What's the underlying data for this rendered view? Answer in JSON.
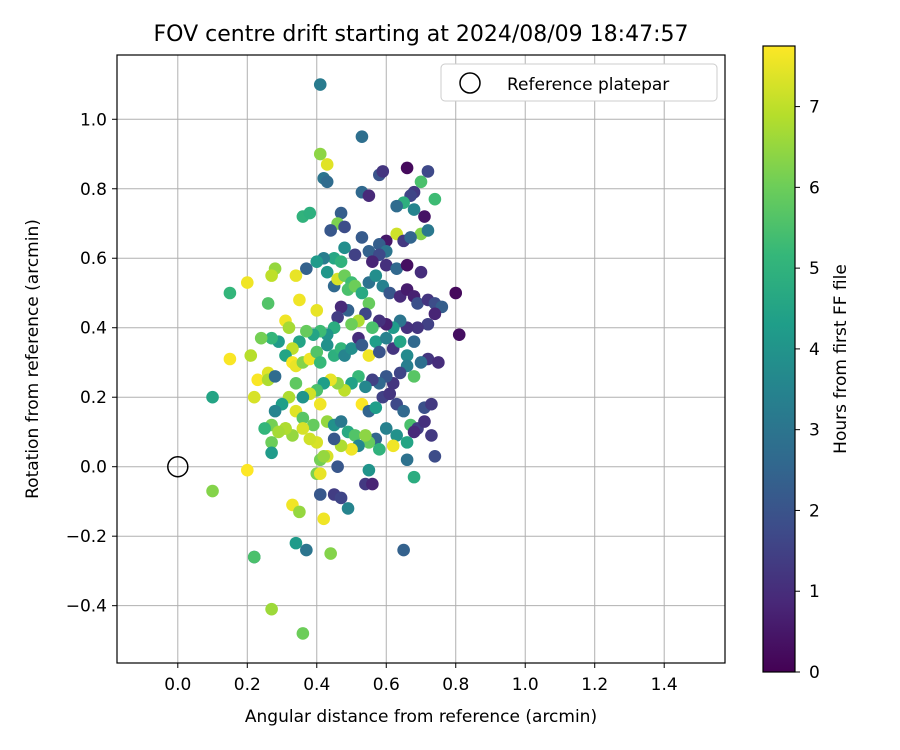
{
  "chart_data": {
    "type": "scatter",
    "title": "FOV centre drift starting at 2024/08/09 18:47:57",
    "xlabel": "Angular distance from reference (arcmin)",
    "ylabel": "Rotation from reference (arcmin)",
    "xlim": [
      -0.175,
      1.575
    ],
    "ylim": [
      -0.565,
      1.185
    ],
    "x_ticks": [
      0.0,
      0.2,
      0.4,
      0.6,
      0.8,
      1.0,
      1.2,
      1.4
    ],
    "x_tick_labels": [
      "0.0",
      "0.2",
      "0.4",
      "0.6",
      "0.8",
      "1.0",
      "1.2",
      "1.4"
    ],
    "y_ticks": [
      -0.4,
      -0.2,
      0.0,
      0.2,
      0.4,
      0.6,
      0.8,
      1.0
    ],
    "y_tick_labels": [
      "−0.4",
      "−0.2",
      "0.0",
      "0.2",
      "0.4",
      "0.6",
      "0.8",
      "1.0"
    ],
    "grid": true,
    "legend": {
      "placement": "top-right",
      "entries": [
        "Reference platepar"
      ]
    },
    "reference_point": {
      "x": 0.0,
      "y": 0.0,
      "label": "Reference platepar"
    },
    "colorbar": {
      "label": "Hours from first FF file",
      "range": [
        0,
        7.75
      ],
      "ticks": [
        0,
        1,
        2,
        3,
        4,
        5,
        6,
        7
      ],
      "tick_labels": [
        "0",
        "1",
        "2",
        "3",
        "4",
        "5",
        "6",
        "7"
      ],
      "colormap": "viridis"
    },
    "colormap_stops": [
      "#440154",
      "#482878",
      "#3e4a89",
      "#31688e",
      "#26828e",
      "#1f9e89",
      "#35b779",
      "#6ece58",
      "#b5de2b",
      "#fde725"
    ],
    "points": [
      [
        0.41,
        1.1,
        3.2
      ],
      [
        0.53,
        0.95,
        2.8
      ],
      [
        0.41,
        0.9,
        6.4
      ],
      [
        0.43,
        0.87,
        7.4
      ],
      [
        0.66,
        0.86,
        0.2
      ],
      [
        0.53,
        0.79,
        2.6
      ],
      [
        0.42,
        0.83,
        3.0
      ],
      [
        0.43,
        0.82,
        2.7
      ],
      [
        0.72,
        0.85,
        1.7
      ],
      [
        0.58,
        0.84,
        2.0
      ],
      [
        0.59,
        0.85,
        1.2
      ],
      [
        0.68,
        0.79,
        1.3
      ],
      [
        0.67,
        0.78,
        1.6
      ],
      [
        0.7,
        0.82,
        5.5
      ],
      [
        0.74,
        0.77,
        5.3
      ],
      [
        0.65,
        0.76,
        4.9
      ],
      [
        0.63,
        0.75,
        2.7
      ],
      [
        0.55,
        0.78,
        0.9
      ],
      [
        0.68,
        0.74,
        3.5
      ],
      [
        0.71,
        0.72,
        0.4
      ],
      [
        0.7,
        0.67,
        6.3
      ],
      [
        0.72,
        0.68,
        3.1
      ],
      [
        0.36,
        0.72,
        5.0
      ],
      [
        0.38,
        0.73,
        4.9
      ],
      [
        0.47,
        0.73,
        2.3
      ],
      [
        0.46,
        0.7,
        6.2
      ],
      [
        0.48,
        0.69,
        1.8
      ],
      [
        0.44,
        0.68,
        2.1
      ],
      [
        0.53,
        0.66,
        2.2
      ],
      [
        0.6,
        0.65,
        0.5
      ],
      [
        0.63,
        0.67,
        7.2
      ],
      [
        0.65,
        0.65,
        1.3
      ],
      [
        0.67,
        0.66,
        2.5
      ],
      [
        0.58,
        0.64,
        2.3
      ],
      [
        0.6,
        0.62,
        3.0
      ],
      [
        0.55,
        0.62,
        2.4
      ],
      [
        0.58,
        0.61,
        1.7
      ],
      [
        0.48,
        0.63,
        3.8
      ],
      [
        0.45,
        0.6,
        4.6
      ],
      [
        0.42,
        0.6,
        3.3
      ],
      [
        0.4,
        0.59,
        4.2
      ],
      [
        0.47,
        0.59,
        5.0
      ],
      [
        0.51,
        0.61,
        1.5
      ],
      [
        0.56,
        0.59,
        0.8
      ],
      [
        0.6,
        0.58,
        1.1
      ],
      [
        0.63,
        0.57,
        2.6
      ],
      [
        0.66,
        0.58,
        0.3
      ],
      [
        0.7,
        0.56,
        1.0
      ],
      [
        0.37,
        0.57,
        2.4
      ],
      [
        0.28,
        0.57,
        6.5
      ],
      [
        0.27,
        0.55,
        7.0
      ],
      [
        0.2,
        0.53,
        7.6
      ],
      [
        0.15,
        0.5,
        5.1
      ],
      [
        0.26,
        0.47,
        5.6
      ],
      [
        0.34,
        0.55,
        7.5
      ],
      [
        0.35,
        0.48,
        7.6
      ],
      [
        0.4,
        0.45,
        7.5
      ],
      [
        0.43,
        0.56,
        4.1
      ],
      [
        0.45,
        0.52,
        2.6
      ],
      [
        0.46,
        0.54,
        7.3
      ],
      [
        0.48,
        0.55,
        6.0
      ],
      [
        0.5,
        0.53,
        5.3
      ],
      [
        0.49,
        0.51,
        5.5
      ],
      [
        0.51,
        0.52,
        6.0
      ],
      [
        0.53,
        0.5,
        4.7
      ],
      [
        0.55,
        0.53,
        2.9
      ],
      [
        0.57,
        0.55,
        3.8
      ],
      [
        0.59,
        0.52,
        3.4
      ],
      [
        0.61,
        0.5,
        2.1
      ],
      [
        0.64,
        0.49,
        0.9
      ],
      [
        0.66,
        0.51,
        0.6
      ],
      [
        0.68,
        0.49,
        0.7
      ],
      [
        0.69,
        0.47,
        1.9
      ],
      [
        0.72,
        0.48,
        1.2
      ],
      [
        0.74,
        0.47,
        1.8
      ],
      [
        0.76,
        0.46,
        2.3
      ],
      [
        0.8,
        0.5,
        0.2
      ],
      [
        0.81,
        0.38,
        0.3
      ],
      [
        0.74,
        0.44,
        0.8
      ],
      [
        0.72,
        0.41,
        1.5
      ],
      [
        0.69,
        0.4,
        1.2
      ],
      [
        0.66,
        0.4,
        1.1
      ],
      [
        0.64,
        0.42,
        3.0
      ],
      [
        0.62,
        0.4,
        4.2
      ],
      [
        0.6,
        0.41,
        0.7
      ],
      [
        0.58,
        0.42,
        1.1
      ],
      [
        0.56,
        0.4,
        5.5
      ],
      [
        0.55,
        0.47,
        5.9
      ],
      [
        0.54,
        0.44,
        1.6
      ],
      [
        0.52,
        0.42,
        6.8
      ],
      [
        0.5,
        0.41,
        6.0
      ],
      [
        0.49,
        0.45,
        2.4
      ],
      [
        0.47,
        0.46,
        0.9
      ],
      [
        0.46,
        0.43,
        1.4
      ],
      [
        0.45,
        0.4,
        4.8
      ],
      [
        0.43,
        0.38,
        4.0
      ],
      [
        0.41,
        0.39,
        5.3
      ],
      [
        0.39,
        0.38,
        4.5
      ],
      [
        0.37,
        0.39,
        5.9
      ],
      [
        0.35,
        0.36,
        4.5
      ],
      [
        0.33,
        0.34,
        7.0
      ],
      [
        0.31,
        0.42,
        7.6
      ],
      [
        0.32,
        0.4,
        6.7
      ],
      [
        0.29,
        0.36,
        4.2
      ],
      [
        0.27,
        0.37,
        5.1
      ],
      [
        0.24,
        0.37,
        6.1
      ],
      [
        0.21,
        0.32,
        6.9
      ],
      [
        0.15,
        0.31,
        7.7
      ],
      [
        0.22,
        0.2,
        7.3
      ],
      [
        0.23,
        0.25,
        7.7
      ],
      [
        0.26,
        0.27,
        7.4
      ],
      [
        0.26,
        0.25,
        6.8
      ],
      [
        0.28,
        0.26,
        2.7
      ],
      [
        0.31,
        0.32,
        4.5
      ],
      [
        0.33,
        0.3,
        7.7
      ],
      [
        0.34,
        0.29,
        7.5
      ],
      [
        0.36,
        0.3,
        6.3
      ],
      [
        0.38,
        0.31,
        7.6
      ],
      [
        0.4,
        0.33,
        5.6
      ],
      [
        0.41,
        0.3,
        5.2
      ],
      [
        0.43,
        0.35,
        3.9
      ],
      [
        0.45,
        0.32,
        4.9
      ],
      [
        0.47,
        0.34,
        5.1
      ],
      [
        0.48,
        0.32,
        3.5
      ],
      [
        0.5,
        0.34,
        3.8
      ],
      [
        0.52,
        0.37,
        1.0
      ],
      [
        0.53,
        0.35,
        2.2
      ],
      [
        0.55,
        0.32,
        7.6
      ],
      [
        0.57,
        0.36,
        4.3
      ],
      [
        0.58,
        0.33,
        2.0
      ],
      [
        0.6,
        0.37,
        3.4
      ],
      [
        0.62,
        0.34,
        1.2
      ],
      [
        0.64,
        0.36,
        4.5
      ],
      [
        0.66,
        0.32,
        3.7
      ],
      [
        0.68,
        0.36,
        2.6
      ],
      [
        0.72,
        0.31,
        1.2
      ],
      [
        0.75,
        0.3,
        1.0
      ],
      [
        0.7,
        0.3,
        2.8
      ],
      [
        0.66,
        0.29,
        3.3
      ],
      [
        0.68,
        0.26,
        5.7
      ],
      [
        0.64,
        0.27,
        1.6
      ],
      [
        0.62,
        0.24,
        1.2
      ],
      [
        0.6,
        0.26,
        2.1
      ],
      [
        0.58,
        0.24,
        2.6
      ],
      [
        0.56,
        0.25,
        1.5
      ],
      [
        0.54,
        0.23,
        3.6
      ],
      [
        0.52,
        0.26,
        5.2
      ],
      [
        0.5,
        0.24,
        4.4
      ],
      [
        0.48,
        0.22,
        7.0
      ],
      [
        0.46,
        0.24,
        6.4
      ],
      [
        0.44,
        0.25,
        7.5
      ],
      [
        0.42,
        0.24,
        4.3
      ],
      [
        0.4,
        0.22,
        5.5
      ],
      [
        0.38,
        0.21,
        7.2
      ],
      [
        0.36,
        0.2,
        4.0
      ],
      [
        0.34,
        0.24,
        5.8
      ],
      [
        0.32,
        0.2,
        6.8
      ],
      [
        0.3,
        0.18,
        4.3
      ],
      [
        0.28,
        0.16,
        3.5
      ],
      [
        0.27,
        0.12,
        6.1
      ],
      [
        0.25,
        0.11,
        5.1
      ],
      [
        0.31,
        0.11,
        6.9
      ],
      [
        0.34,
        0.16,
        7.4
      ],
      [
        0.36,
        0.14,
        5.7
      ],
      [
        0.39,
        0.12,
        5.9
      ],
      [
        0.41,
        0.18,
        7.6
      ],
      [
        0.43,
        0.13,
        6.5
      ],
      [
        0.45,
        0.12,
        3.9
      ],
      [
        0.47,
        0.13,
        3.1
      ],
      [
        0.49,
        0.1,
        4.7
      ],
      [
        0.51,
        0.09,
        5.6
      ],
      [
        0.53,
        0.18,
        7.8
      ],
      [
        0.55,
        0.16,
        2.5
      ],
      [
        0.57,
        0.17,
        4.3
      ],
      [
        0.59,
        0.2,
        1.5
      ],
      [
        0.61,
        0.21,
        1.2
      ],
      [
        0.63,
        0.18,
        1.7
      ],
      [
        0.65,
        0.16,
        2.6
      ],
      [
        0.67,
        0.12,
        5.5
      ],
      [
        0.69,
        0.11,
        1.4
      ],
      [
        0.71,
        0.17,
        1.9
      ],
      [
        0.73,
        0.18,
        1.3
      ],
      [
        0.71,
        0.13,
        1.1
      ],
      [
        0.73,
        0.09,
        1.3
      ],
      [
        0.68,
        0.1,
        0.9
      ],
      [
        0.66,
        0.07,
        4.5
      ],
      [
        0.63,
        0.09,
        3.9
      ],
      [
        0.62,
        0.06,
        7.6
      ],
      [
        0.6,
        0.11,
        3.4
      ],
      [
        0.57,
        0.08,
        2.5
      ],
      [
        0.55,
        0.07,
        5.9
      ],
      [
        0.54,
        0.09,
        6.4
      ],
      [
        0.52,
        0.06,
        3.6
      ],
      [
        0.5,
        0.05,
        7.6
      ],
      [
        0.47,
        0.06,
        6.8
      ],
      [
        0.45,
        0.08,
        2.1
      ],
      [
        0.43,
        0.03,
        7.3
      ],
      [
        0.41,
        0.02,
        6.1
      ],
      [
        0.4,
        0.07,
        7.3
      ],
      [
        0.38,
        0.08,
        7.2
      ],
      [
        0.36,
        0.11,
        7.3
      ],
      [
        0.33,
        0.09,
        6.5
      ],
      [
        0.31,
        0.11,
        6.8
      ],
      [
        0.29,
        0.1,
        6.7
      ],
      [
        0.27,
        0.07,
        6.0
      ],
      [
        0.27,
        0.04,
        4.2
      ],
      [
        0.1,
        0.2,
        4.5
      ],
      [
        0.1,
        -0.07,
        6.3
      ],
      [
        0.2,
        -0.01,
        7.8
      ],
      [
        0.22,
        -0.26,
        2.4
      ],
      [
        0.22,
        -0.26,
        5.5
      ],
      [
        0.27,
        -0.41,
        6.6
      ],
      [
        0.36,
        -0.48,
        6.0
      ],
      [
        0.34,
        -0.22,
        4.2
      ],
      [
        0.37,
        -0.24,
        3.0
      ],
      [
        0.44,
        -0.25,
        6.3
      ],
      [
        0.33,
        -0.11,
        7.6
      ],
      [
        0.35,
        -0.13,
        6.5
      ],
      [
        0.42,
        -0.15,
        7.6
      ],
      [
        0.41,
        -0.08,
        2.1
      ],
      [
        0.45,
        -0.08,
        1.4
      ],
      [
        0.47,
        -0.09,
        1.6
      ],
      [
        0.49,
        -0.12,
        3.5
      ],
      [
        0.4,
        -0.02,
        6.2
      ],
      [
        0.41,
        -0.02,
        7.5
      ],
      [
        0.42,
        0.03,
        6.5
      ],
      [
        0.46,
        0.0,
        2.1
      ],
      [
        0.54,
        -0.05,
        1.3
      ],
      [
        0.56,
        -0.05,
        0.8
      ],
      [
        0.55,
        -0.01,
        4.0
      ],
      [
        0.58,
        0.05,
        5.0
      ],
      [
        0.66,
        0.02,
        2.9
      ],
      [
        0.68,
        -0.03,
        4.8
      ],
      [
        0.74,
        0.03,
        1.8
      ],
      [
        0.65,
        -0.24,
        2.4
      ]
    ]
  }
}
